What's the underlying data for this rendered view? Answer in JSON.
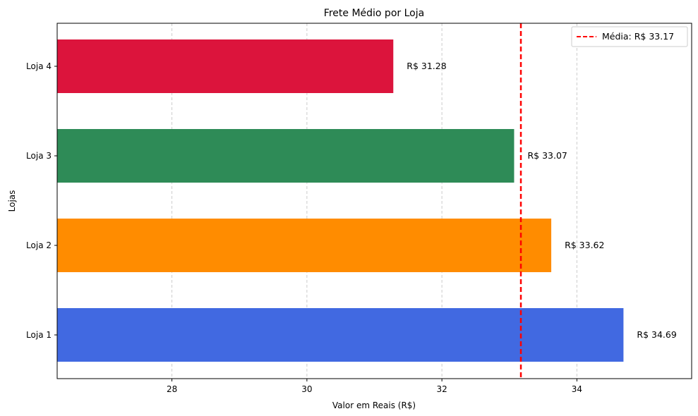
{
  "chart_data": {
    "type": "bar",
    "orientation": "horizontal",
    "title": "Frete Médio por Loja",
    "xlabel": "Valor em Reais (R$)",
    "ylabel": "Lojas",
    "categories": [
      "Loja 1",
      "Loja 2",
      "Loja 3",
      "Loja 4"
    ],
    "values": [
      34.69,
      33.62,
      33.07,
      31.28
    ],
    "data_labels": [
      "R$ 34.69",
      "R$ 33.62",
      "R$ 33.07",
      "R$ 31.28"
    ],
    "colors": [
      "#4169e1",
      "#ff8c00",
      "#2e8b57",
      "#dc143c"
    ],
    "xlim": [
      26.3,
      35.7
    ],
    "xticks": [
      28,
      30,
      32,
      34
    ],
    "xtick_labels": [
      "28",
      "30",
      "32",
      "34"
    ],
    "grid": "x, dashed",
    "reference_line": {
      "value": 33.17,
      "label": "Média: R$ 33.17",
      "color": "#ff0000",
      "style": "dashed"
    },
    "legend_position": "upper right"
  }
}
